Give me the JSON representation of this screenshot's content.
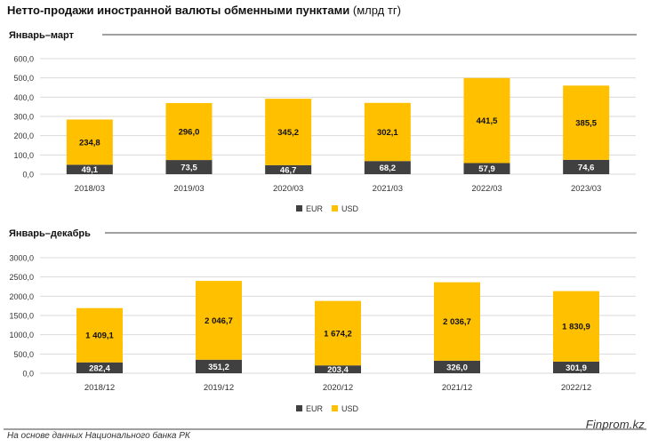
{
  "title": {
    "main": "Нетто-продажи иностранной валюты обменными пунктами",
    "unit": "(млрд тг)"
  },
  "colors": {
    "EUR": "#404040",
    "USD": "#FFC000",
    "grid": "#d9d9d9",
    "rule": "#404040"
  },
  "source": "На основе данных Национального банка РК",
  "brand": "Finprom.kz",
  "chart_data": [
    {
      "type": "bar",
      "stacked": true,
      "title": "Январь–март",
      "categories": [
        "2018/03",
        "2019/03",
        "2020/03",
        "2021/03",
        "2022/03",
        "2023/03"
      ],
      "series": [
        {
          "name": "EUR",
          "values": [
            49.1,
            73.5,
            46.7,
            68.2,
            57.9,
            74.6
          ],
          "labels": [
            "49,1",
            "73,5",
            "46,7",
            "68,2",
            "57,9",
            "74,6"
          ]
        },
        {
          "name": "USD",
          "values": [
            234.8,
            296.0,
            345.2,
            302.1,
            441.5,
            385.5
          ],
          "labels": [
            "234,8",
            "296,0",
            "345,2",
            "302,1",
            "441,5",
            "385,5"
          ]
        }
      ],
      "ylim": [
        0,
        600
      ],
      "yticks": [
        "0,0",
        "100,0",
        "200,0",
        "300,0",
        "400,0",
        "500,0",
        "600,0"
      ],
      "grid": true,
      "legend": "bottom-center"
    },
    {
      "type": "bar",
      "stacked": true,
      "title": "Январь–декабрь",
      "categories": [
        "2018/12",
        "2019/12",
        "2020/12",
        "2021/12",
        "2022/12"
      ],
      "series": [
        {
          "name": "EUR",
          "values": [
            282.4,
            351.2,
            203.4,
            326.0,
            301.9
          ],
          "labels": [
            "282,4",
            "351,2",
            "203,4",
            "326,0",
            "301,9"
          ]
        },
        {
          "name": "USD",
          "values": [
            1409.1,
            2046.7,
            1674.2,
            2036.7,
            1830.9
          ],
          "labels": [
            "1 409,1",
            "2 046,7",
            "1 674,2",
            "2 036,7",
            "1 830,9"
          ]
        }
      ],
      "ylim": [
        0,
        3000
      ],
      "yticks": [
        "0,0",
        "500,0",
        "1000,0",
        "1500,0",
        "2000,0",
        "2500,0",
        "3000,0"
      ],
      "grid": true,
      "legend": "bottom-center"
    }
  ]
}
